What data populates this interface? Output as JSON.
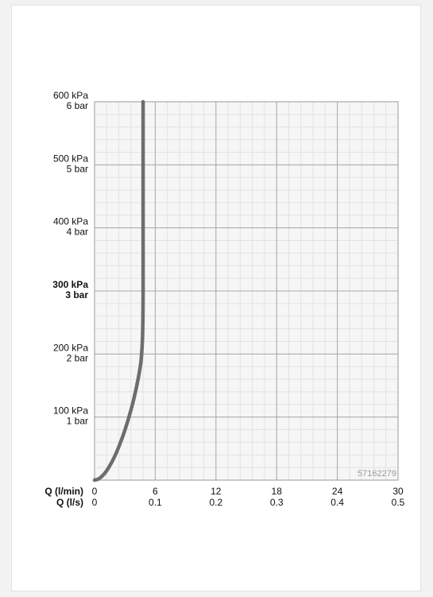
{
  "chart_data": {
    "type": "line",
    "title": "",
    "xlabel": "",
    "ylabel": "",
    "x_rows": [
      {
        "label": "Q (l/min)",
        "ticks": [
          "0",
          "6",
          "12",
          "18",
          "24",
          "30"
        ]
      },
      {
        "label": "Q (l/s)",
        "ticks": [
          "0",
          "0.1",
          "0.2",
          "0.3",
          "0.4",
          "0.5"
        ]
      }
    ],
    "y_ticks": [
      {
        "value": 100,
        "kpa": "100 kPa",
        "bar": "1 bar",
        "bold": false
      },
      {
        "value": 200,
        "kpa": "200 kPa",
        "bar": "2 bar",
        "bold": false
      },
      {
        "value": 300,
        "kpa": "300 kPa",
        "bar": "3 bar",
        "bold": true
      },
      {
        "value": 400,
        "kpa": "400 kPa",
        "bar": "4 bar",
        "bold": false
      },
      {
        "value": 500,
        "kpa": "500 kPa",
        "bar": "5 bar",
        "bold": false
      },
      {
        "value": 600,
        "kpa": "600 kPa",
        "bar": "6 bar",
        "bold": false
      }
    ],
    "xlim": [
      0,
      30
    ],
    "ylim": [
      0,
      600
    ],
    "grid": {
      "major": true,
      "minor": true,
      "x_major_step": 6,
      "y_major_step": 100,
      "minor_per_major": 5
    },
    "series": [
      {
        "name": "",
        "color": "#6d6d6d",
        "x": [
          0,
          0.5,
          1.2,
          2.0,
          2.8,
          3.4,
          3.9,
          4.3,
          4.6,
          4.75,
          4.8,
          4.8,
          4.8,
          4.8
        ],
        "y": [
          0,
          3,
          15,
          38,
          70,
          100,
          130,
          160,
          190,
          230,
          300,
          400,
          500,
          600
        ]
      }
    ],
    "watermark": "57162279"
  }
}
